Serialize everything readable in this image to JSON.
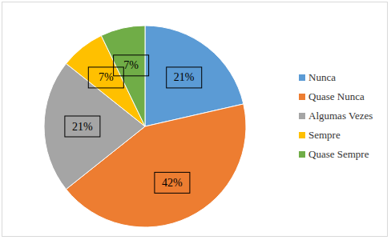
{
  "chart_data": {
    "type": "pie",
    "categories": [
      "Nunca",
      "Quase Nunca",
      "Algumas Vezes",
      "Sempre",
      "Quase Sempre"
    ],
    "values": [
      21,
      42,
      21,
      7,
      7
    ],
    "value_labels": [
      "21%",
      "42%",
      "21%",
      "7%",
      "7%"
    ],
    "colors": [
      "#5b9bd5",
      "#ed7d31",
      "#a5a5a5",
      "#ffc000",
      "#70ad47"
    ],
    "data_labels": true,
    "legend": "right"
  }
}
